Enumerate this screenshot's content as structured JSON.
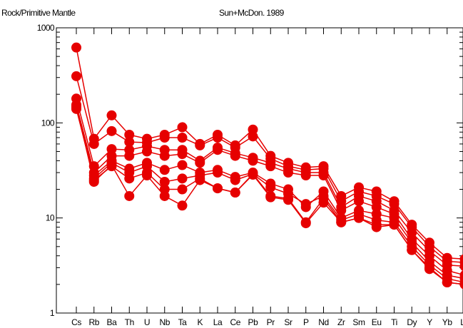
{
  "chart_data": {
    "type": "line",
    "title_left": "Rock/Primitive Mantle",
    "title_right": "Sun+McDon. 1989",
    "yscale": "log",
    "ylim": [
      1,
      1000
    ],
    "yticks": [
      {
        "value": 1,
        "label": "1"
      },
      {
        "value": 10,
        "label": "10"
      },
      {
        "value": 100,
        "label": "100"
      },
      {
        "value": 1000,
        "label": "1000"
      }
    ],
    "grid": false,
    "line_color": "#e60000",
    "marker": "circle",
    "categories": [
      "Cs",
      "Rb",
      "Ba",
      "Th",
      "U",
      "Nb",
      "Ta",
      "K",
      "La",
      "Ce",
      "Pb",
      "Pr",
      "Sr",
      "P",
      "Nd",
      "Zr",
      "Sm",
      "Eu",
      "Ti",
      "Dy",
      "Y",
      "Yb",
      "Lu"
    ],
    "series": [
      {
        "values": [
          620,
          68,
          120,
          75,
          68,
          75,
          90,
          60,
          75,
          58,
          85,
          45,
          38,
          34,
          35,
          17,
          21,
          19,
          15,
          8.5,
          5.5,
          3.8,
          3.7
        ]
      },
      {
        "values": [
          310,
          60,
          82,
          63,
          62,
          70,
          70,
          58,
          70,
          55,
          72,
          42,
          35,
          32,
          33,
          15,
          19,
          17,
          14,
          8,
          5,
          3.5,
          3.4
        ]
      },
      {
        "values": [
          180,
          35,
          53,
          52,
          57,
          52,
          52,
          40,
          55,
          48,
          43,
          38,
          33,
          30,
          30,
          13,
          17,
          15,
          12,
          7,
          4.5,
          3.2,
          3.1
        ]
      },
      {
        "values": [
          155,
          30,
          45,
          45,
          50,
          45,
          47,
          38,
          52,
          45,
          40,
          35,
          30,
          28,
          28,
          12,
          15,
          13,
          11,
          6,
          4,
          2.8,
          2.5
        ]
      },
      {
        "values": [
          145,
          28,
          40,
          33,
          38,
          32,
          36,
          30,
          32,
          27,
          30,
          23,
          20,
          13,
          19,
          10,
          12,
          11,
          10,
          5.5,
          3.5,
          2.5,
          2.3
        ]
      },
      {
        "values": [
          140,
          26,
          38,
          30,
          35,
          24,
          26,
          28,
          30,
          25,
          29,
          21,
          18,
          14,
          17,
          9.5,
          11,
          9.5,
          9,
          5,
          3.2,
          2.3,
          2.1
        ]
      },
      {
        "values": [
          145,
          25,
          35,
          26,
          30,
          20,
          20,
          26,
          20.5,
          18.5,
          29,
          17,
          16,
          9,
          16,
          9,
          10,
          8.5,
          8.5,
          4.6,
          3,
          2.1,
          2
        ]
      },
      {
        "values": [
          150,
          24,
          36,
          17,
          28,
          17,
          13.5,
          25,
          20.5,
          18.5,
          28.5,
          16.5,
          15.5,
          8.8,
          14.5,
          9,
          10,
          8,
          8.5,
          4.6,
          2.9,
          2.1,
          2
        ]
      }
    ]
  }
}
